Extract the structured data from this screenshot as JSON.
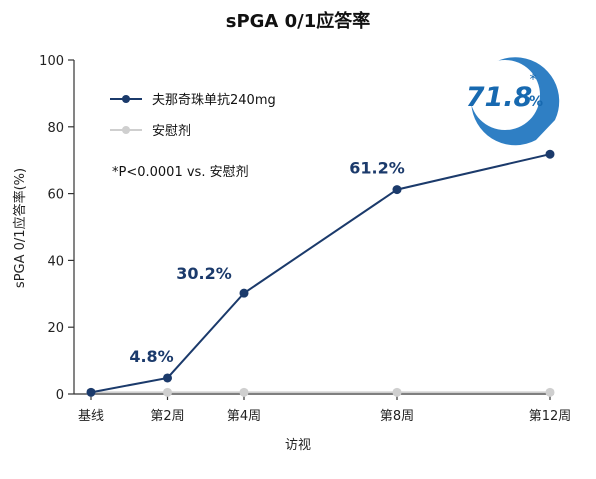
{
  "chart_data": {
    "type": "line",
    "title": "sPGA 0/1应答率",
    "xlabel": "访视",
    "ylabel": "sPGA 0/1应答率(%)",
    "categories": [
      "基线",
      "第2周",
      "第4周",
      "第8周",
      "第12周"
    ],
    "x_weeks": [
      0,
      2,
      4,
      8,
      12
    ],
    "ylim": [
      0,
      100
    ],
    "yticks": [
      0,
      20,
      40,
      60,
      80,
      100
    ],
    "series": [
      {
        "name": "夫那奇珠单抗240mg",
        "color": "#1b3a6b",
        "values": [
          0.5,
          4.8,
          30.2,
          61.2,
          71.8
        ],
        "data_labels": [
          "",
          "4.8%",
          "30.2%",
          "61.2%",
          ""
        ]
      },
      {
        "name": "安慰剂",
        "color": "#cfcfcf",
        "values": [
          0.5,
          0.5,
          0.5,
          0.5,
          0.5
        ]
      }
    ],
    "note": "*P<0.0001 vs. 安慰剂",
    "badge": {
      "value": "71.8",
      "unit": "%",
      "mark": "*",
      "color": "#1769b0"
    },
    "grid": false,
    "legend_position": "top-left"
  }
}
